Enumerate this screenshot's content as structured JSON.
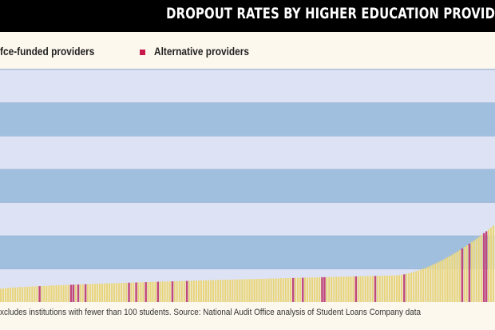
{
  "header": {
    "title": "DROPOUT RATES BY HIGHER EDUCATION PROVID"
  },
  "legend": {
    "items": [
      {
        "label": "fce-funded providers",
        "color": "#e8d47a"
      },
      {
        "label": "Alternative providers",
        "color": "#c8174a"
      }
    ]
  },
  "footer": {
    "note": "xcludes institutions with fewer than 100 students.  Source: National Audit Office analysis of Student Loans Company data"
  },
  "colors": {
    "band_light": "#dde2f5",
    "band_dark": "#a0bfdf",
    "funded_bar": "#e8d47a",
    "funded_gap": "#f7eec4",
    "alternative_bar": "#c2477a"
  },
  "chart_data": {
    "type": "bar",
    "title": "DROPOUT RATES BY HIGHER EDUCATION PROVID",
    "xlabel": "",
    "ylabel": "",
    "ylim": [
      0,
      7
    ],
    "y_bands": 7,
    "grid": true,
    "legend_position": "top-left",
    "sorted": "ascending",
    "n_bars": 205,
    "series": [
      {
        "name": "fce-funded providers",
        "shape": "ascending-curve",
        "start": 0.4,
        "mid": 0.8,
        "end": 2.3
      },
      {
        "name": "Alternative providers",
        "indices": [
          16,
          29,
          30,
          32,
          35,
          53,
          56,
          60,
          65,
          71,
          77,
          121,
          125,
          133,
          134,
          147,
          155,
          167,
          191,
          194,
          200,
          201
        ]
      }
    ]
  }
}
